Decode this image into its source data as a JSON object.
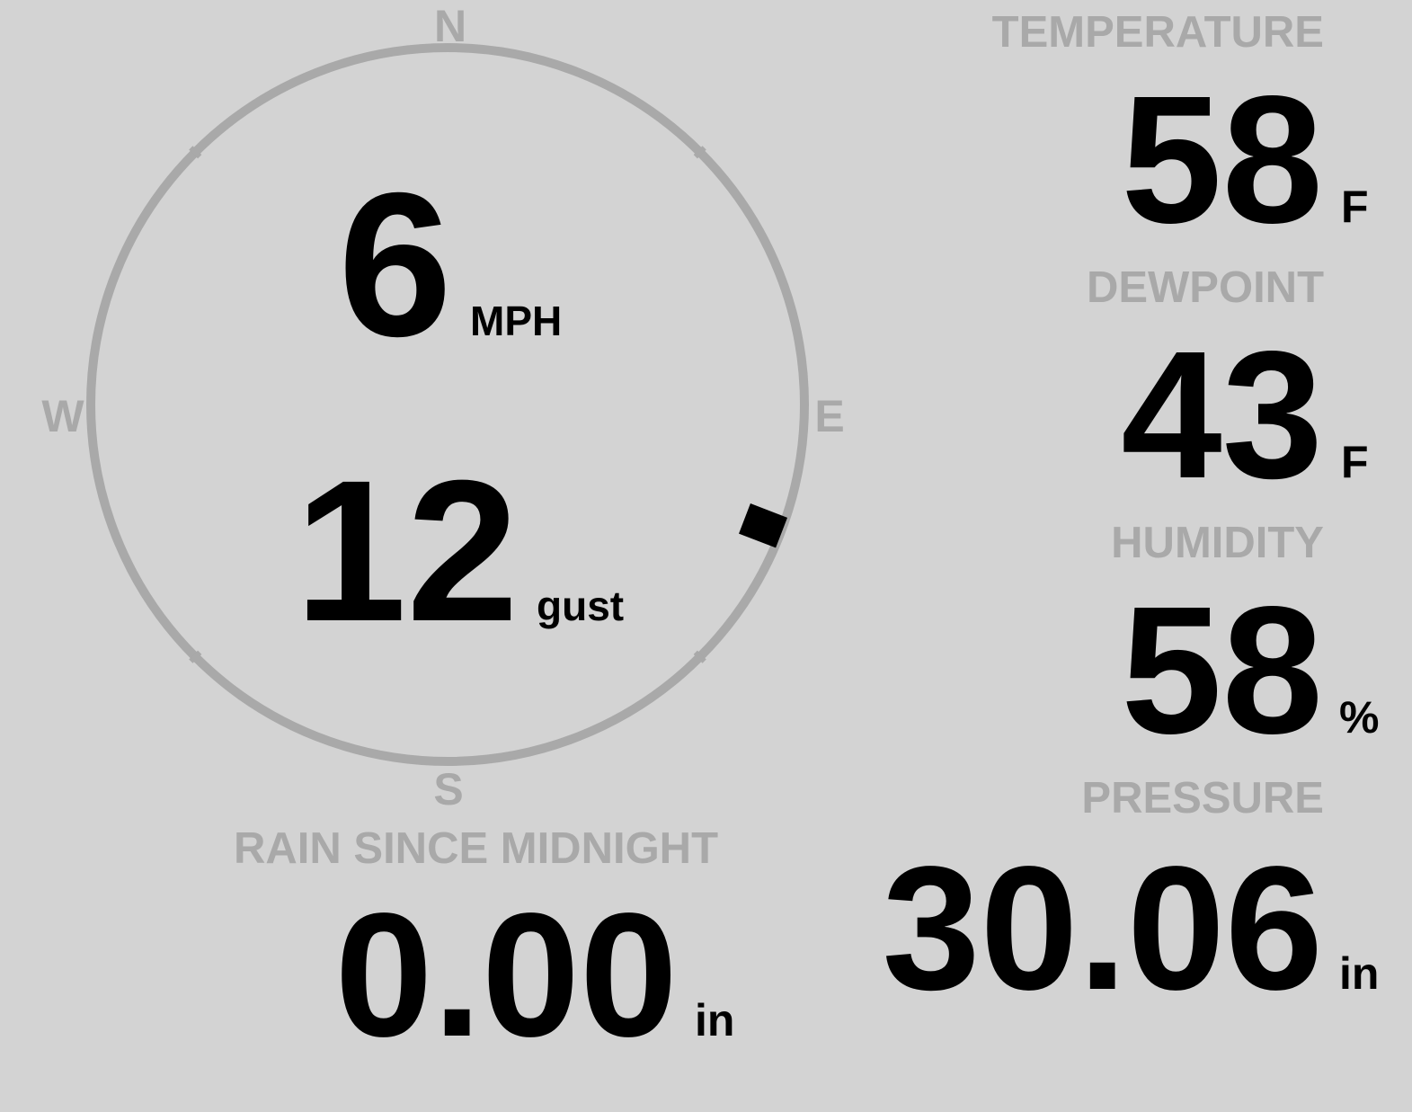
{
  "colors": {
    "background": "#d3d3d3",
    "label": "#a9a9a9",
    "value": "#000000"
  },
  "wind": {
    "compass": {
      "north": "N",
      "south": "S",
      "west": "W",
      "east": "E"
    },
    "speed": "6",
    "speed_unit": "MPH",
    "gust": "12",
    "gust_unit": "gust",
    "direction_degrees": 111
  },
  "temperature": {
    "label": "TEMPERATURE",
    "value": "58",
    "unit": "F"
  },
  "dewpoint": {
    "label": "DEWPOINT",
    "value": "43",
    "unit": "F"
  },
  "humidity": {
    "label": "HUMIDITY",
    "value": "58",
    "unit": "%"
  },
  "rain": {
    "label": "RAIN SINCE MIDNIGHT",
    "value": "0.00",
    "unit": "in"
  },
  "pressure": {
    "label": "PRESSURE",
    "value": "30.06",
    "unit": "in"
  }
}
